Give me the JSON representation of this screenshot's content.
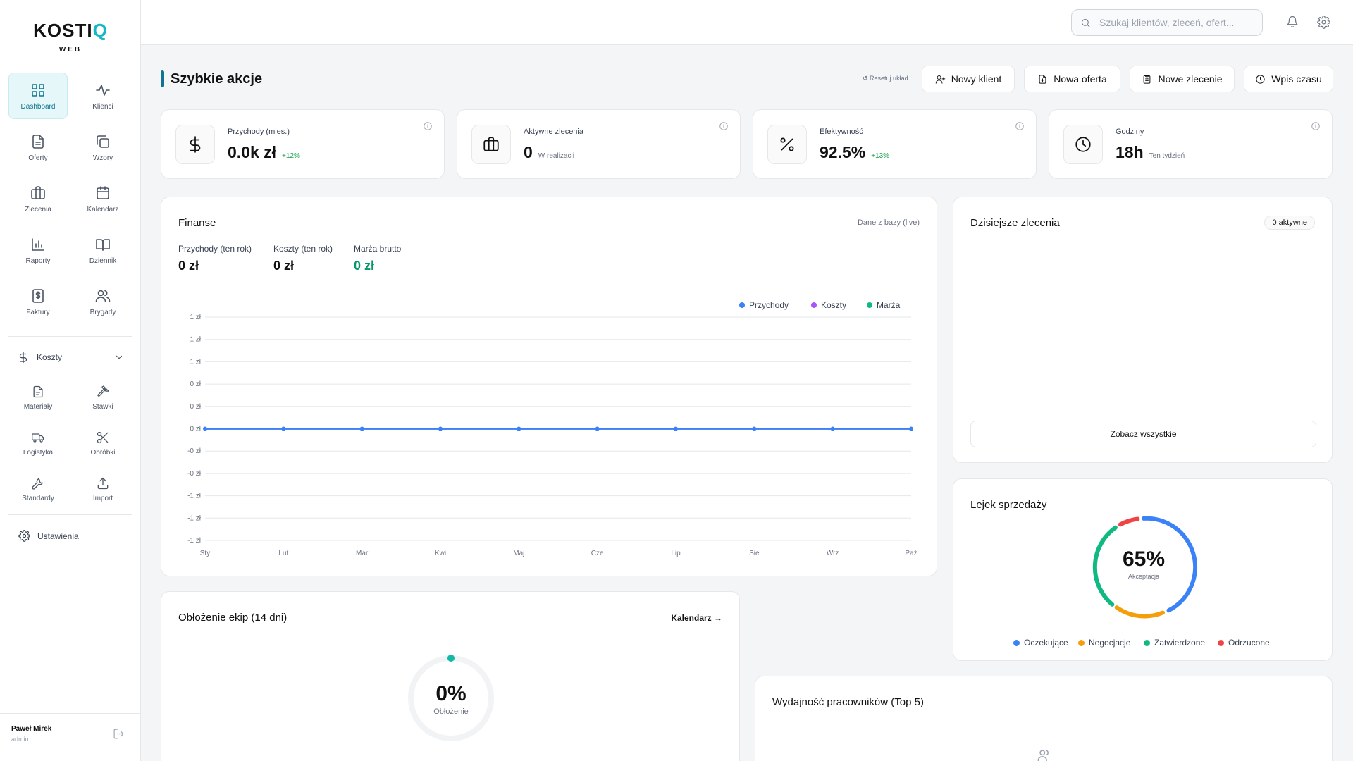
{
  "brand": {
    "name_main": "KOSTI",
    "name_accent": "Q",
    "sub": "WEB"
  },
  "sidebar": {
    "nav": [
      {
        "label": "Dashboard",
        "icon": "grid-icon",
        "active": true
      },
      {
        "label": "Klienci",
        "icon": "activity-icon"
      },
      {
        "label": "Oferty",
        "icon": "file-icon"
      },
      {
        "label": "Wzory",
        "icon": "copy-icon"
      },
      {
        "label": "Zlecenia",
        "icon": "briefcase-icon"
      },
      {
        "label": "Kalendarz",
        "icon": "calendar-icon"
      },
      {
        "label": "Raporty",
        "icon": "bar-chart-icon"
      },
      {
        "label": "Dziennik",
        "icon": "book-icon"
      },
      {
        "label": "Faktury",
        "icon": "invoice-icon"
      },
      {
        "label": "Brygady",
        "icon": "users-icon"
      }
    ],
    "costs_label": "Koszty",
    "costs_items": [
      {
        "label": "Materiały",
        "icon": "file-text-icon"
      },
      {
        "label": "Stawki",
        "icon": "hammer-icon"
      },
      {
        "label": "Logistyka",
        "icon": "truck-icon"
      },
      {
        "label": "Obróbki",
        "icon": "scissors-icon"
      },
      {
        "label": "Standardy",
        "icon": "wrench-icon"
      },
      {
        "label": "Import",
        "icon": "upload-icon"
      }
    ],
    "settings_label": "Ustawienia",
    "user": {
      "name": "Paweł Mirek",
      "role": "admin"
    }
  },
  "topbar": {
    "search_placeholder": "Szukaj klientów, zleceń, ofert..."
  },
  "quick_actions": {
    "title": "Szybkie akcje",
    "reset": "↺ Resetuj układ",
    "buttons": [
      "Nowy klient",
      "Nowa oferta",
      "Nowe zlecenie",
      "Wpis czasu"
    ]
  },
  "stats": [
    {
      "label": "Przychody (mies.)",
      "value": "0.0k zł",
      "delta": "+12%",
      "icon": "dollar-icon"
    },
    {
      "label": "Aktywne zlecenia",
      "value": "0",
      "sub": "W realizacji",
      "icon": "briefcase-icon"
    },
    {
      "label": "Efektywność",
      "value": "92.5%",
      "delta": "+13%",
      "icon": "percent-icon"
    },
    {
      "label": "Godziny",
      "value": "18h",
      "sub": "Ten tydzień",
      "icon": "clock-icon"
    }
  ],
  "finance": {
    "title": "Finanse",
    "source": "Dane z bazy (live)",
    "metrics": [
      {
        "label": "Przychody (ten rok)",
        "value": "0 zł"
      },
      {
        "label": "Koszty (ten rok)",
        "value": "0 zł"
      },
      {
        "label": "Marża brutto",
        "value": "0 zł"
      }
    ]
  },
  "chart_data": {
    "type": "line",
    "categories": [
      "Sty",
      "Lut",
      "Mar",
      "Kwi",
      "Maj",
      "Cze",
      "Lip",
      "Sie",
      "Wrz",
      "Paź"
    ],
    "y_ticks": [
      "1 zł",
      "1 zł",
      "1 zł",
      "0 zł",
      "0 zł",
      "0 zł",
      "-0 zł",
      "-0 zł",
      "-1 zł",
      "-1 zł",
      "-1 zł"
    ],
    "ylim": [
      -1,
      1
    ],
    "grid": true,
    "legend_position": "top-right",
    "series": [
      {
        "name": "Przychody",
        "color": "#3b82f6",
        "values": [
          0,
          0,
          0,
          0,
          0,
          0,
          0,
          0,
          0,
          0
        ]
      },
      {
        "name": "Koszty",
        "color": "#a855f7",
        "values": [
          0,
          0,
          0,
          0,
          0,
          0,
          0,
          0,
          0,
          0
        ]
      },
      {
        "name": "Marża",
        "color": "#10b981",
        "values": [
          0,
          0,
          0,
          0,
          0,
          0,
          0,
          0,
          0,
          0
        ]
      }
    ]
  },
  "today_orders": {
    "title": "Dzisiejsze zlecenia",
    "badge": "0 aktywne",
    "see_all": "Zobacz wszystkie"
  },
  "funnel": {
    "title": "Lejek sprzedaży",
    "percent": "65%",
    "sub": "Akceptacja",
    "segments": [
      {
        "label": "Oczekujące",
        "color": "#3b82f6"
      },
      {
        "label": "Negocjacje",
        "color": "#f59e0b"
      },
      {
        "label": "Zatwierdzone",
        "color": "#10b981"
      },
      {
        "label": "Odrzucone",
        "color": "#ef4444"
      }
    ]
  },
  "crew": {
    "title": "Obłożenie ekip (14 dni)",
    "link": "Kalendarz →",
    "percent": "0%",
    "sub": "Obłożenie",
    "percent_value": 0
  },
  "workers": {
    "title": "Wydajność pracowników (Top 5)"
  }
}
